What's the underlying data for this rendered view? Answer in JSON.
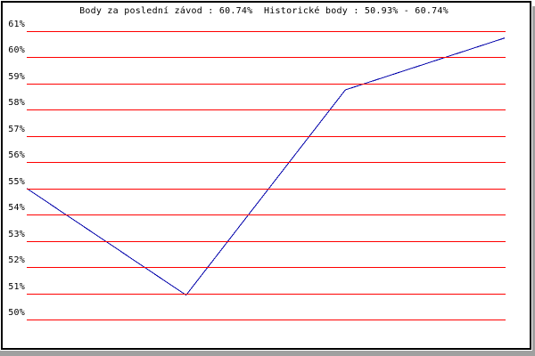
{
  "colors": {
    "background": "#ffffff",
    "frame": "#000000",
    "shadow": "#a0a0a0",
    "gridline": "#ff0000",
    "line": "#0000aa",
    "text": "#000000"
  },
  "chart_data": {
    "type": "line",
    "title": "Body za poslední závod : 60.74%  Historické body : 50.93% - 60.74%",
    "stats": {
      "last_race_points": "60.74%",
      "historic_min": "50.93%",
      "historic_max": "60.74%"
    },
    "series": [
      {
        "name": "body",
        "color": "#0000aa",
        "values": [
          55.0,
          50.93,
          58.76,
          60.74
        ]
      }
    ],
    "yticks": [
      {
        "value": 61,
        "label": "61%"
      },
      {
        "value": 60,
        "label": "60%"
      },
      {
        "value": 59,
        "label": "59%"
      },
      {
        "value": 58,
        "label": "58%"
      },
      {
        "value": 57,
        "label": "57%"
      },
      {
        "value": 56,
        "label": "56%"
      },
      {
        "value": 55,
        "label": "55%"
      },
      {
        "value": 54,
        "label": "54%"
      },
      {
        "value": 53,
        "label": "53%"
      },
      {
        "value": 52,
        "label": "52%"
      },
      {
        "value": 51,
        "label": "51%"
      },
      {
        "value": 50,
        "label": "50%"
      }
    ],
    "ylim": [
      50,
      61
    ],
    "xlabel": "",
    "ylabel": "",
    "grid": "horizontal",
    "legend_position": "none"
  }
}
